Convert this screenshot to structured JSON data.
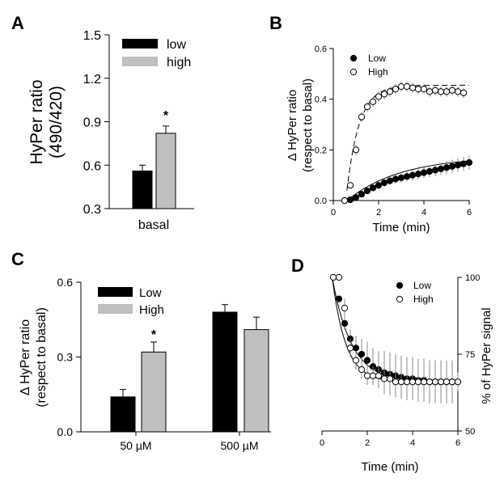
{
  "chart_data": [
    {
      "panel": "A",
      "type": "bar",
      "ylabel_lines": [
        "HyPer ratio",
        "(490/420)"
      ],
      "ylim": [
        0.3,
        1.5
      ],
      "yticks": [
        "0.3",
        "0.6",
        "0.9",
        "1.2",
        "1.5"
      ],
      "categories": [
        "basal"
      ],
      "series": [
        {
          "name": "low",
          "values": [
            0.56
          ],
          "errors": [
            0.04
          ],
          "color": "#000000"
        },
        {
          "name": "high",
          "values": [
            0.82
          ],
          "errors": [
            0.05
          ],
          "color": "#bfbfbf"
        }
      ],
      "annotations": [
        "*"
      ],
      "legend_position": "top-left"
    },
    {
      "panel": "B",
      "type": "scatter",
      "xlabel": "Time (min)",
      "ylabel_lines": [
        "Δ HyPer ratio",
        "(respect to basal)"
      ],
      "xlim": [
        0,
        6
      ],
      "ylim": [
        0,
        0.6
      ],
      "xticks": [
        "0",
        "2",
        "4",
        "6"
      ],
      "yticks": [
        "0.0",
        "0.2",
        "0.4",
        "0.6"
      ],
      "series": [
        {
          "name": "Low",
          "marker": "filled",
          "x": [
            0.5,
            0.75,
            1.0,
            1.25,
            1.5,
            1.75,
            2.0,
            2.25,
            2.5,
            2.75,
            3.0,
            3.25,
            3.5,
            3.75,
            4.0,
            4.25,
            4.5,
            4.75,
            5.0,
            5.25,
            5.5,
            5.75,
            6.0
          ],
          "y": [
            0.0,
            0.003,
            0.012,
            0.025,
            0.038,
            0.05,
            0.06,
            0.07,
            0.078,
            0.085,
            0.09,
            0.095,
            0.1,
            0.105,
            0.11,
            0.115,
            0.12,
            0.125,
            0.13,
            0.135,
            0.14,
            0.145,
            0.15
          ],
          "errors": [
            0.0,
            0.005,
            0.008,
            0.01,
            0.012,
            0.014,
            0.015,
            0.016,
            0.017,
            0.018,
            0.019,
            0.02,
            0.021,
            0.022,
            0.022,
            0.023,
            0.024,
            0.025,
            0.025,
            0.026,
            0.027,
            0.028,
            0.028
          ]
        },
        {
          "name": "High",
          "marker": "open",
          "x": [
            0.5,
            0.75,
            1.0,
            1.25,
            1.5,
            1.75,
            2.0,
            2.25,
            2.5,
            2.75,
            3.0,
            3.25,
            3.5,
            3.75,
            4.0,
            4.25,
            4.5,
            4.75,
            5.0,
            5.25,
            5.5,
            5.75
          ],
          "y": [
            0.0,
            0.06,
            0.2,
            0.33,
            0.37,
            0.39,
            0.41,
            0.42,
            0.43,
            0.44,
            0.45,
            0.45,
            0.445,
            0.44,
            0.44,
            0.43,
            0.435,
            0.43,
            0.43,
            0.435,
            0.43,
            0.425
          ],
          "errors": [
            0.0,
            0.01,
            0.02,
            0.02,
            0.02,
            0.02,
            0.02,
            0.02,
            0.02,
            0.02,
            0.02,
            0.02,
            0.02,
            0.02,
            0.02,
            0.02,
            0.02,
            0.02,
            0.02,
            0.02,
            0.02,
            0.02
          ]
        }
      ],
      "legend_position": "top-left"
    },
    {
      "panel": "C",
      "type": "bar",
      "ylabel_lines": [
        "Δ HyPer ratio",
        "(respect to basal)"
      ],
      "ylim": [
        0,
        0.6
      ],
      "yticks": [
        "0.0",
        "0.3",
        "0.6"
      ],
      "categories": [
        "50 µM",
        "500 µM"
      ],
      "series": [
        {
          "name": "Low",
          "values": [
            0.14,
            0.48
          ],
          "errors": [
            0.03,
            0.03
          ],
          "color": "#000000"
        },
        {
          "name": "High",
          "values": [
            0.32,
            0.41
          ],
          "errors": [
            0.04,
            0.05
          ],
          "color": "#bfbfbf"
        }
      ],
      "annotations": [
        "*"
      ],
      "legend_position": "top-left"
    },
    {
      "panel": "D",
      "type": "scatter",
      "xlabel": "Time (min)",
      "ylabel_lines": [
        "% of HyPer signal"
      ],
      "ylabel_side": "right",
      "xlim": [
        0,
        6
      ],
      "ylim": [
        50,
        100
      ],
      "xticks": [
        "0",
        "2",
        "4",
        "6"
      ],
      "yticks": [
        "50",
        "75",
        "100"
      ],
      "series": [
        {
          "name": "Low",
          "marker": "filled",
          "x": [
            0.75,
            1.0,
            1.25,
            1.5,
            1.75,
            2.0,
            2.25,
            2.5,
            2.75,
            3.0,
            3.25,
            3.5,
            3.75,
            4.0,
            4.25,
            4.5,
            4.75,
            5.0,
            5.25,
            5.5,
            5.75
          ],
          "y": [
            93,
            85,
            80,
            77,
            75,
            73,
            71,
            70,
            69,
            68.5,
            68,
            67.5,
            67,
            67,
            66.5,
            66.5,
            66,
            66,
            66,
            66,
            66
          ],
          "errors": [
            1,
            2,
            3,
            4,
            5,
            6,
            6,
            6,
            7,
            7,
            7,
            7,
            7,
            7,
            7,
            7,
            7,
            7,
            7,
            7,
            7
          ]
        },
        {
          "name": "High",
          "marker": "open",
          "x": [
            0.5,
            0.75,
            1.0,
            1.25,
            1.5,
            1.75,
            2.0,
            2.25,
            2.5,
            2.75,
            3.0,
            3.25,
            3.5,
            3.75,
            4.0,
            4.25,
            4.5,
            4.75,
            5.0,
            5.25,
            5.5,
            5.75,
            6.0
          ],
          "y": [
            100,
            100,
            90,
            77,
            73,
            70,
            68,
            68,
            68,
            67,
            67,
            66,
            66,
            66,
            66,
            66,
            66,
            66,
            66,
            66,
            66,
            66,
            66
          ],
          "errors": [
            0,
            0,
            3,
            3,
            3,
            3,
            3,
            3,
            3,
            3,
            3,
            3,
            3,
            3,
            3,
            3,
            3,
            3,
            3,
            3,
            3,
            3,
            3
          ]
        }
      ],
      "legend_position": "top-right"
    }
  ]
}
